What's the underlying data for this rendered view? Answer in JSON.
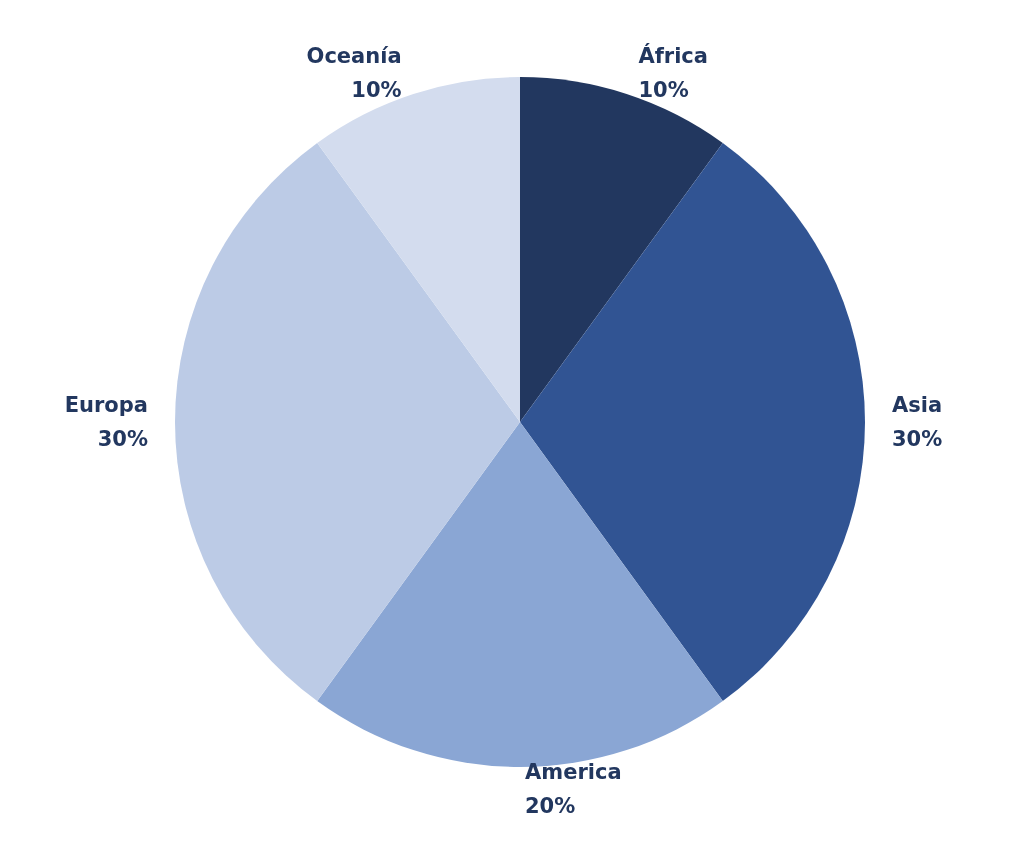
{
  "chart_data": {
    "type": "pie",
    "categories": [
      "África",
      "Asia",
      "America",
      "Europa",
      "Oceanía"
    ],
    "values": [
      10,
      30,
      20,
      30,
      10
    ],
    "colors": [
      "#22375f",
      "#315493",
      "#8aa6d4",
      "#bccbe6",
      "#d3dcee"
    ],
    "value_labels": [
      "10%",
      "30%",
      "20%",
      "30%",
      "10%"
    ],
    "legend": false
  }
}
